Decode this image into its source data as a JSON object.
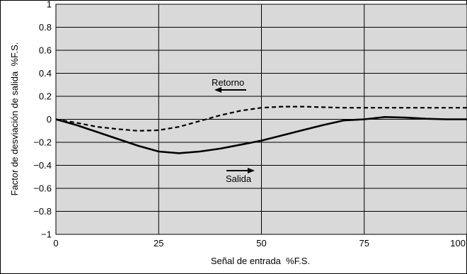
{
  "chart_data": {
    "type": "line",
    "xlabel": "Señal de entrada  %F.S.",
    "ylabel": "Factor de desviación de salida  %F.S.",
    "xlim": [
      0,
      100
    ],
    "ylim": [
      -1,
      1
    ],
    "x_ticks": [
      0,
      25,
      50,
      75,
      100
    ],
    "y_ticks": [
      1,
      0.8,
      0.6,
      0.4,
      0.2,
      0,
      -0.2,
      -0.4,
      -0.6,
      -0.8,
      -1
    ],
    "x_tick_labels": [
      "0",
      "25",
      "50",
      "75",
      "100"
    ],
    "y_tick_labels": [
      "1",
      "0.8",
      "0.6",
      "0.4",
      "0.2",
      "0",
      "−0.2",
      "−0.4",
      "−0.6",
      "−0.8",
      "−1"
    ],
    "grid": true,
    "background_color": "#d9d9d9",
    "series": [
      {
        "name": "Salida",
        "style": "solid",
        "direction": "right",
        "x": [
          0,
          5,
          10,
          15,
          20,
          25,
          30,
          35,
          40,
          45,
          50,
          55,
          60,
          65,
          70,
          75,
          80,
          85,
          90,
          95,
          100
        ],
        "y": [
          0,
          -0.05,
          -0.11,
          -0.17,
          -0.23,
          -0.28,
          -0.295,
          -0.28,
          -0.255,
          -0.22,
          -0.185,
          -0.14,
          -0.095,
          -0.05,
          -0.01,
          0.0,
          0.02,
          0.015,
          0.005,
          0.0,
          0.0
        ]
      },
      {
        "name": "Retorno",
        "style": "dashed",
        "direction": "left",
        "x": [
          0,
          5,
          10,
          15,
          20,
          25,
          30,
          35,
          40,
          45,
          50,
          55,
          60,
          65,
          70,
          75,
          80,
          85,
          90,
          95,
          100
        ],
        "y": [
          0,
          -0.03,
          -0.065,
          -0.085,
          -0.1,
          -0.095,
          -0.065,
          -0.015,
          0.035,
          0.075,
          0.1,
          0.11,
          0.11,
          0.105,
          0.1,
          0.1,
          0.1,
          0.1,
          0.1,
          0.1,
          0.1
        ]
      }
    ]
  }
}
